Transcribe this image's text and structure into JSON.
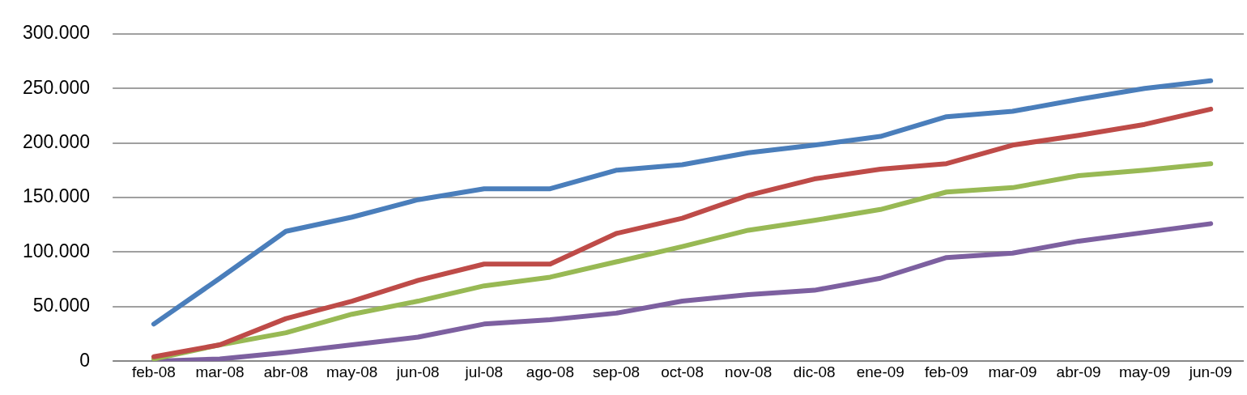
{
  "chart_data": {
    "type": "line",
    "categories": [
      "feb-08",
      "mar-08",
      "abr-08",
      "may-08",
      "jun-08",
      "jul-08",
      "ago-08",
      "sep-08",
      "oct-08",
      "nov-08",
      "dic-08",
      "ene-09",
      "feb-09",
      "mar-09",
      "abr-09",
      "may-09",
      "jun-09"
    ],
    "series": [
      {
        "color": "#4a7ebb",
        "values": [
          34000,
          76000,
          119000,
          132000,
          148000,
          158000,
          158000,
          175000,
          180000,
          191000,
          198000,
          206000,
          224000,
          229000,
          240000,
          250000,
          257000
        ]
      },
      {
        "color": "#be4b48",
        "values": [
          4000,
          15000,
          39000,
          55000,
          74000,
          89000,
          89000,
          117000,
          131000,
          152000,
          167000,
          176000,
          181000,
          198000,
          207000,
          217000,
          231000
        ]
      },
      {
        "color": "#98b954",
        "values": [
          2000,
          15000,
          26000,
          43000,
          55000,
          69000,
          77000,
          91000,
          105000,
          120000,
          129000,
          139000,
          155000,
          159000,
          170000,
          175000,
          181000
        ]
      },
      {
        "color": "#7d60a0",
        "values": [
          0,
          2000,
          8000,
          15000,
          22000,
          34000,
          38000,
          44000,
          55000,
          61000,
          65000,
          76000,
          95000,
          99000,
          110000,
          118000,
          126000
        ]
      }
    ],
    "ylim": [
      0,
      300000
    ],
    "yticks": [
      {
        "value": 0,
        "label": "0"
      },
      {
        "value": 50000,
        "label": "50.000"
      },
      {
        "value": 100000,
        "label": "100.000"
      },
      {
        "value": 150000,
        "label": "150.000"
      },
      {
        "value": 200000,
        "label": "200.000"
      },
      {
        "value": 250000,
        "label": "250.000"
      },
      {
        "value": 300000,
        "label": "300.000"
      }
    ],
    "grid": "y",
    "legend": false,
    "marker": "none",
    "line_style": "solid"
  }
}
